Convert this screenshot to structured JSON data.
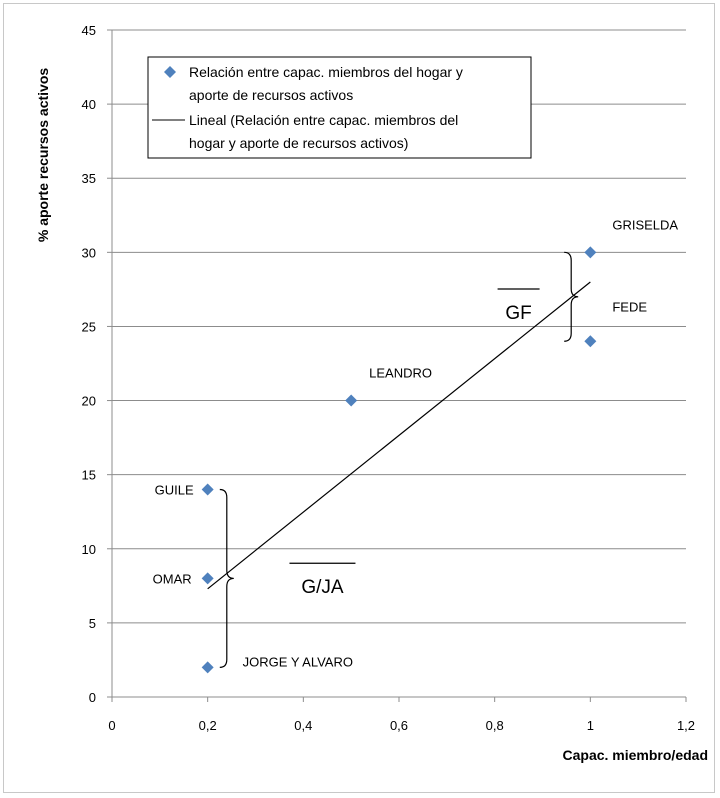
{
  "chart_data": {
    "type": "scatter",
    "xlabel": "Capac. miembro/edad",
    "ylabel": "% aporte recursos activos",
    "xlim": [
      0,
      1.2
    ],
    "ylim": [
      0,
      45
    ],
    "x_ticks": [
      "0",
      "0,2",
      "0,4",
      "0,6",
      "0,8",
      "1",
      "1,2"
    ],
    "y_ticks": [
      "0",
      "5",
      "10",
      "15",
      "20",
      "25",
      "30",
      "35",
      "40",
      "45"
    ],
    "grid": "horizontal",
    "legend_position": "top-left",
    "color": "#4f81bd",
    "series": [
      {
        "name": "Relación entre capac. miembros del hogar y aporte de recursos activos",
        "legend_lines": [
          "Relación entre capac. miembros del hogar y",
          "aporte de recursos activos"
        ],
        "points": [
          {
            "x": 0.2,
            "y": 14,
            "label": "GUILE"
          },
          {
            "x": 0.2,
            "y": 8,
            "label": "OMAR"
          },
          {
            "x": 0.2,
            "y": 2,
            "label": "JORGE Y ALVARO"
          },
          {
            "x": 0.5,
            "y": 20,
            "label": "LEANDRO"
          },
          {
            "x": 1.0,
            "y": 30,
            "label": "GRISELDA"
          },
          {
            "x": 1.0,
            "y": 24,
            "label": "FEDE"
          }
        ]
      }
    ],
    "trendline": {
      "name": "Lineal (Relación entre capac. miembros del hogar y aporte de recursos activos)",
      "legend_lines": [
        "Lineal (Relación entre capac. miembros del",
        "hogar y aporte de recursos activos)"
      ],
      "x0": 0.2,
      "y0": 7.3,
      "x1": 1.0,
      "y1": 28.0
    },
    "annotations": [
      {
        "text": "GF",
        "x": 0.85,
        "y": 25.5,
        "overline": true,
        "brace_x": 0.96,
        "brace_y": [
          24,
          30
        ]
      },
      {
        "text": "G/JA",
        "x": 0.44,
        "y": 7.0,
        "overline": true,
        "brace_x": 0.24,
        "brace_y": [
          2,
          14
        ]
      }
    ]
  }
}
